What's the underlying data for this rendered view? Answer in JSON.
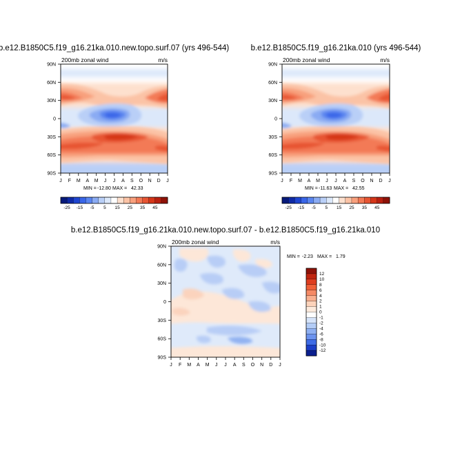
{
  "chart_data": [
    {
      "type": "heatmap",
      "title": "b.e12.B1850C5.f19_g16.21ka.010.new.topo.surf.07 (yrs 496-544)",
      "subtitle_left": "200mb zonal wind",
      "subtitle_right": "m/s",
      "x_ticks": [
        "J",
        "F",
        "M",
        "A",
        "M",
        "J",
        "J",
        "A",
        "S",
        "O",
        "N",
        "D",
        "J"
      ],
      "y_ticks": [
        "90N",
        "60N",
        "30N",
        "0",
        "30S",
        "60S",
        "90S"
      ],
      "stats": {
        "min_label": "MIN =",
        "min": "-12.80",
        "max_label": "MAX =",
        "max": "42.33"
      },
      "colorbar_labels": [
        "-25",
        "-15",
        "-5",
        "5",
        "15",
        "25",
        "35",
        "45"
      ],
      "colorbar_orientation": "horizontal",
      "colors": [
        "#071a7a",
        "#0f2aa6",
        "#1f45d0",
        "#3a66e8",
        "#5b86f0",
        "#8aabf3",
        "#b9cff7",
        "#dce8fa",
        "#ffffff",
        "#fde0ce",
        "#fbc3a6",
        "#f8a07d",
        "#f37a56",
        "#e75533",
        "#d53619",
        "#b82010",
        "#8e1208"
      ]
    },
    {
      "type": "heatmap",
      "title": "b.e12.B1850C5.f19_g16.21ka.010 (yrs 496-544)",
      "subtitle_left": "200mb zonal wind",
      "subtitle_right": "m/s",
      "x_ticks": [
        "J",
        "F",
        "M",
        "A",
        "M",
        "J",
        "J",
        "A",
        "S",
        "O",
        "N",
        "D",
        "J"
      ],
      "y_ticks": [
        "90N",
        "60N",
        "30N",
        "0",
        "30S",
        "60S",
        "90S"
      ],
      "stats": {
        "min_label": "MIN =",
        "min": "-11.63",
        "max_label": "MAX =",
        "max": "42.55"
      },
      "colorbar_labels": [
        "-25",
        "-15",
        "-5",
        "5",
        "15",
        "25",
        "35",
        "45"
      ],
      "colorbar_orientation": "horizontal",
      "colors": [
        "#071a7a",
        "#0f2aa6",
        "#1f45d0",
        "#3a66e8",
        "#5b86f0",
        "#8aabf3",
        "#b9cff7",
        "#dce8fa",
        "#ffffff",
        "#fde0ce",
        "#fbc3a6",
        "#f8a07d",
        "#f37a56",
        "#e75533",
        "#d53619",
        "#b82010",
        "#8e1208"
      ]
    },
    {
      "type": "heatmap",
      "title": "b.e12.B1850C5.f19_g16.21ka.010.new.topo.surf.07 - b.e12.B1850C5.f19_g16.21ka.010",
      "subtitle_left": "200mb zonal wind",
      "subtitle_right": "m/s",
      "x_ticks": [
        "J",
        "F",
        "M",
        "A",
        "M",
        "J",
        "J",
        "A",
        "S",
        "O",
        "N",
        "D",
        "J"
      ],
      "y_ticks": [
        "90N",
        "60N",
        "30N",
        "0",
        "30S",
        "60S",
        "90S"
      ],
      "stats": {
        "min_label": "MIN =",
        "min": "-2.23",
        "max_label": "MAX =",
        "max": "1.79"
      },
      "colorbar_labels": [
        "12",
        "10",
        "8",
        "6",
        "4",
        "2",
        "1",
        "0",
        "-1",
        "-2",
        "-4",
        "-6",
        "-8",
        "-10",
        "-12"
      ],
      "colorbar_orientation": "vertical",
      "colors": [
        "#8e1208",
        "#c0250f",
        "#de3d1f",
        "#f06038",
        "#f58a66",
        "#f9b090",
        "#fcd3bb",
        "#fdebdd",
        "#ffffff",
        "#d6e4fa",
        "#b3ccf6",
        "#8fb0f2",
        "#6c93ee",
        "#3f6ce6",
        "#1c3fc7",
        "#0b1f8f"
      ]
    }
  ]
}
